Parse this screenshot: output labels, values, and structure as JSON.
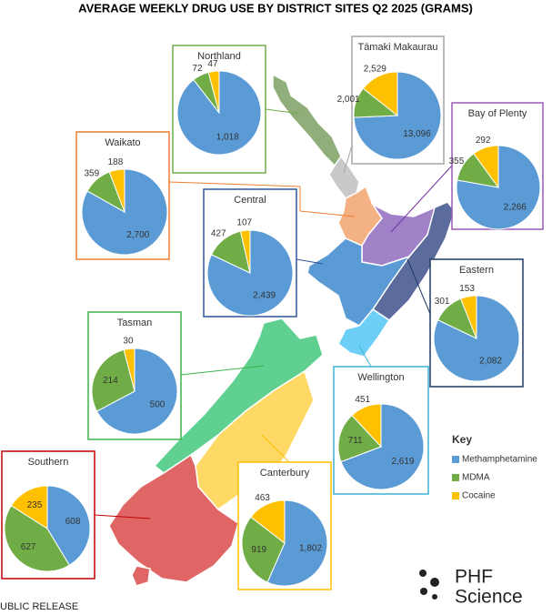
{
  "title": "AVERAGE WEEKLY DRUG USE BY DISTRICT SITES Q2 2025 (GRAMS)",
  "legend": {
    "title": "Key"
  },
  "footer": "UBLIC RELEASE",
  "logo": {
    "line1": "PHF",
    "line2": "Science"
  },
  "chart_data": [
    {
      "type": "pie",
      "title": "Northland",
      "categories": [
        "Methamphetamine",
        "MDMA",
        "Cocaine"
      ],
      "colors": [
        "#5b9bd5",
        "#70ad47",
        "#ffc000"
      ],
      "frame_color": "#70ad47",
      "values": [
        1018,
        72,
        47
      ],
      "value_labels": [
        "1,018",
        "72",
        "47"
      ]
    },
    {
      "type": "pie",
      "title": "Tāmaki Makaurau",
      "categories": [
        "Methamphetamine",
        "MDMA",
        "Cocaine"
      ],
      "colors": [
        "#5b9bd5",
        "#70ad47",
        "#ffc000"
      ],
      "frame_color": "#a5a5a5",
      "values": [
        13096,
        2001,
        2529
      ],
      "value_labels": [
        "13,096",
        "2,001",
        "2,529"
      ]
    },
    {
      "type": "pie",
      "title": "Bay of Plenty",
      "categories": [
        "Methamphetamine",
        "MDMA",
        "Cocaine"
      ],
      "colors": [
        "#5b9bd5",
        "#70ad47",
        "#ffc000"
      ],
      "frame_color": "#9b59b6",
      "values": [
        2266,
        355,
        292
      ],
      "value_labels": [
        "2,266",
        "355",
        "292"
      ]
    },
    {
      "type": "pie",
      "title": "Waikato",
      "categories": [
        "Methamphetamine",
        "MDMA",
        "Cocaine"
      ],
      "colors": [
        "#5b9bd5",
        "#70ad47",
        "#ffc000"
      ],
      "frame_color": "#ed7d31",
      "values": [
        2700,
        359,
        188
      ],
      "value_labels": [
        "2,700",
        "359",
        "188"
      ]
    },
    {
      "type": "pie",
      "title": "Central",
      "categories": [
        "Methamphetamine",
        "MDMA",
        "Cocaine"
      ],
      "colors": [
        "#5b9bd5",
        "#70ad47",
        "#ffc000"
      ],
      "frame_color": "#2e5597",
      "values": [
        2439,
        427,
        107
      ],
      "value_labels": [
        "2,439",
        "427",
        "107"
      ]
    },
    {
      "type": "pie",
      "title": "Eastern",
      "categories": [
        "Methamphetamine",
        "MDMA",
        "Cocaine"
      ],
      "colors": [
        "#5b9bd5",
        "#70ad47",
        "#ffc000"
      ],
      "frame_color": "#1f3864",
      "values": [
        2082,
        301,
        153
      ],
      "value_labels": [
        "2,082",
        "301",
        "153"
      ]
    },
    {
      "type": "pie",
      "title": "Tasman",
      "categories": [
        "Methamphetamine",
        "MDMA",
        "Cocaine"
      ],
      "colors": [
        "#5b9bd5",
        "#70ad47",
        "#ffc000"
      ],
      "frame_color": "#3cb44b",
      "values": [
        500,
        214,
        30
      ]
    },
    {
      "type": "pie",
      "title": "Wellington",
      "categories": [
        "Methamphetamine",
        "MDMA",
        "Cocaine"
      ],
      "colors": [
        "#5b9bd5",
        "#70ad47",
        "#ffc000"
      ],
      "frame_color": "#3bb3d6",
      "values": [
        2619,
        711,
        451
      ],
      "value_labels": [
        "2,619",
        "711",
        "451"
      ]
    },
    {
      "type": "pie",
      "title": "Southern",
      "categories": [
        "Methamphetamine",
        "MDMA",
        "Cocaine"
      ],
      "colors": [
        "#5b9bd5",
        "#70ad47",
        "#ffc000"
      ],
      "frame_color": "#c00000",
      "values": [
        608,
        627,
        235
      ]
    },
    {
      "type": "pie",
      "title": "Canterbury",
      "categories": [
        "Methamphetamine",
        "MDMA",
        "Cocaine"
      ],
      "colors": [
        "#5b9bd5",
        "#70ad47",
        "#ffc000"
      ],
      "frame_color": "#ffc000",
      "values": [
        1802,
        919,
        463
      ],
      "value_labels": [
        "1,802",
        "919",
        "463"
      ]
    }
  ]
}
